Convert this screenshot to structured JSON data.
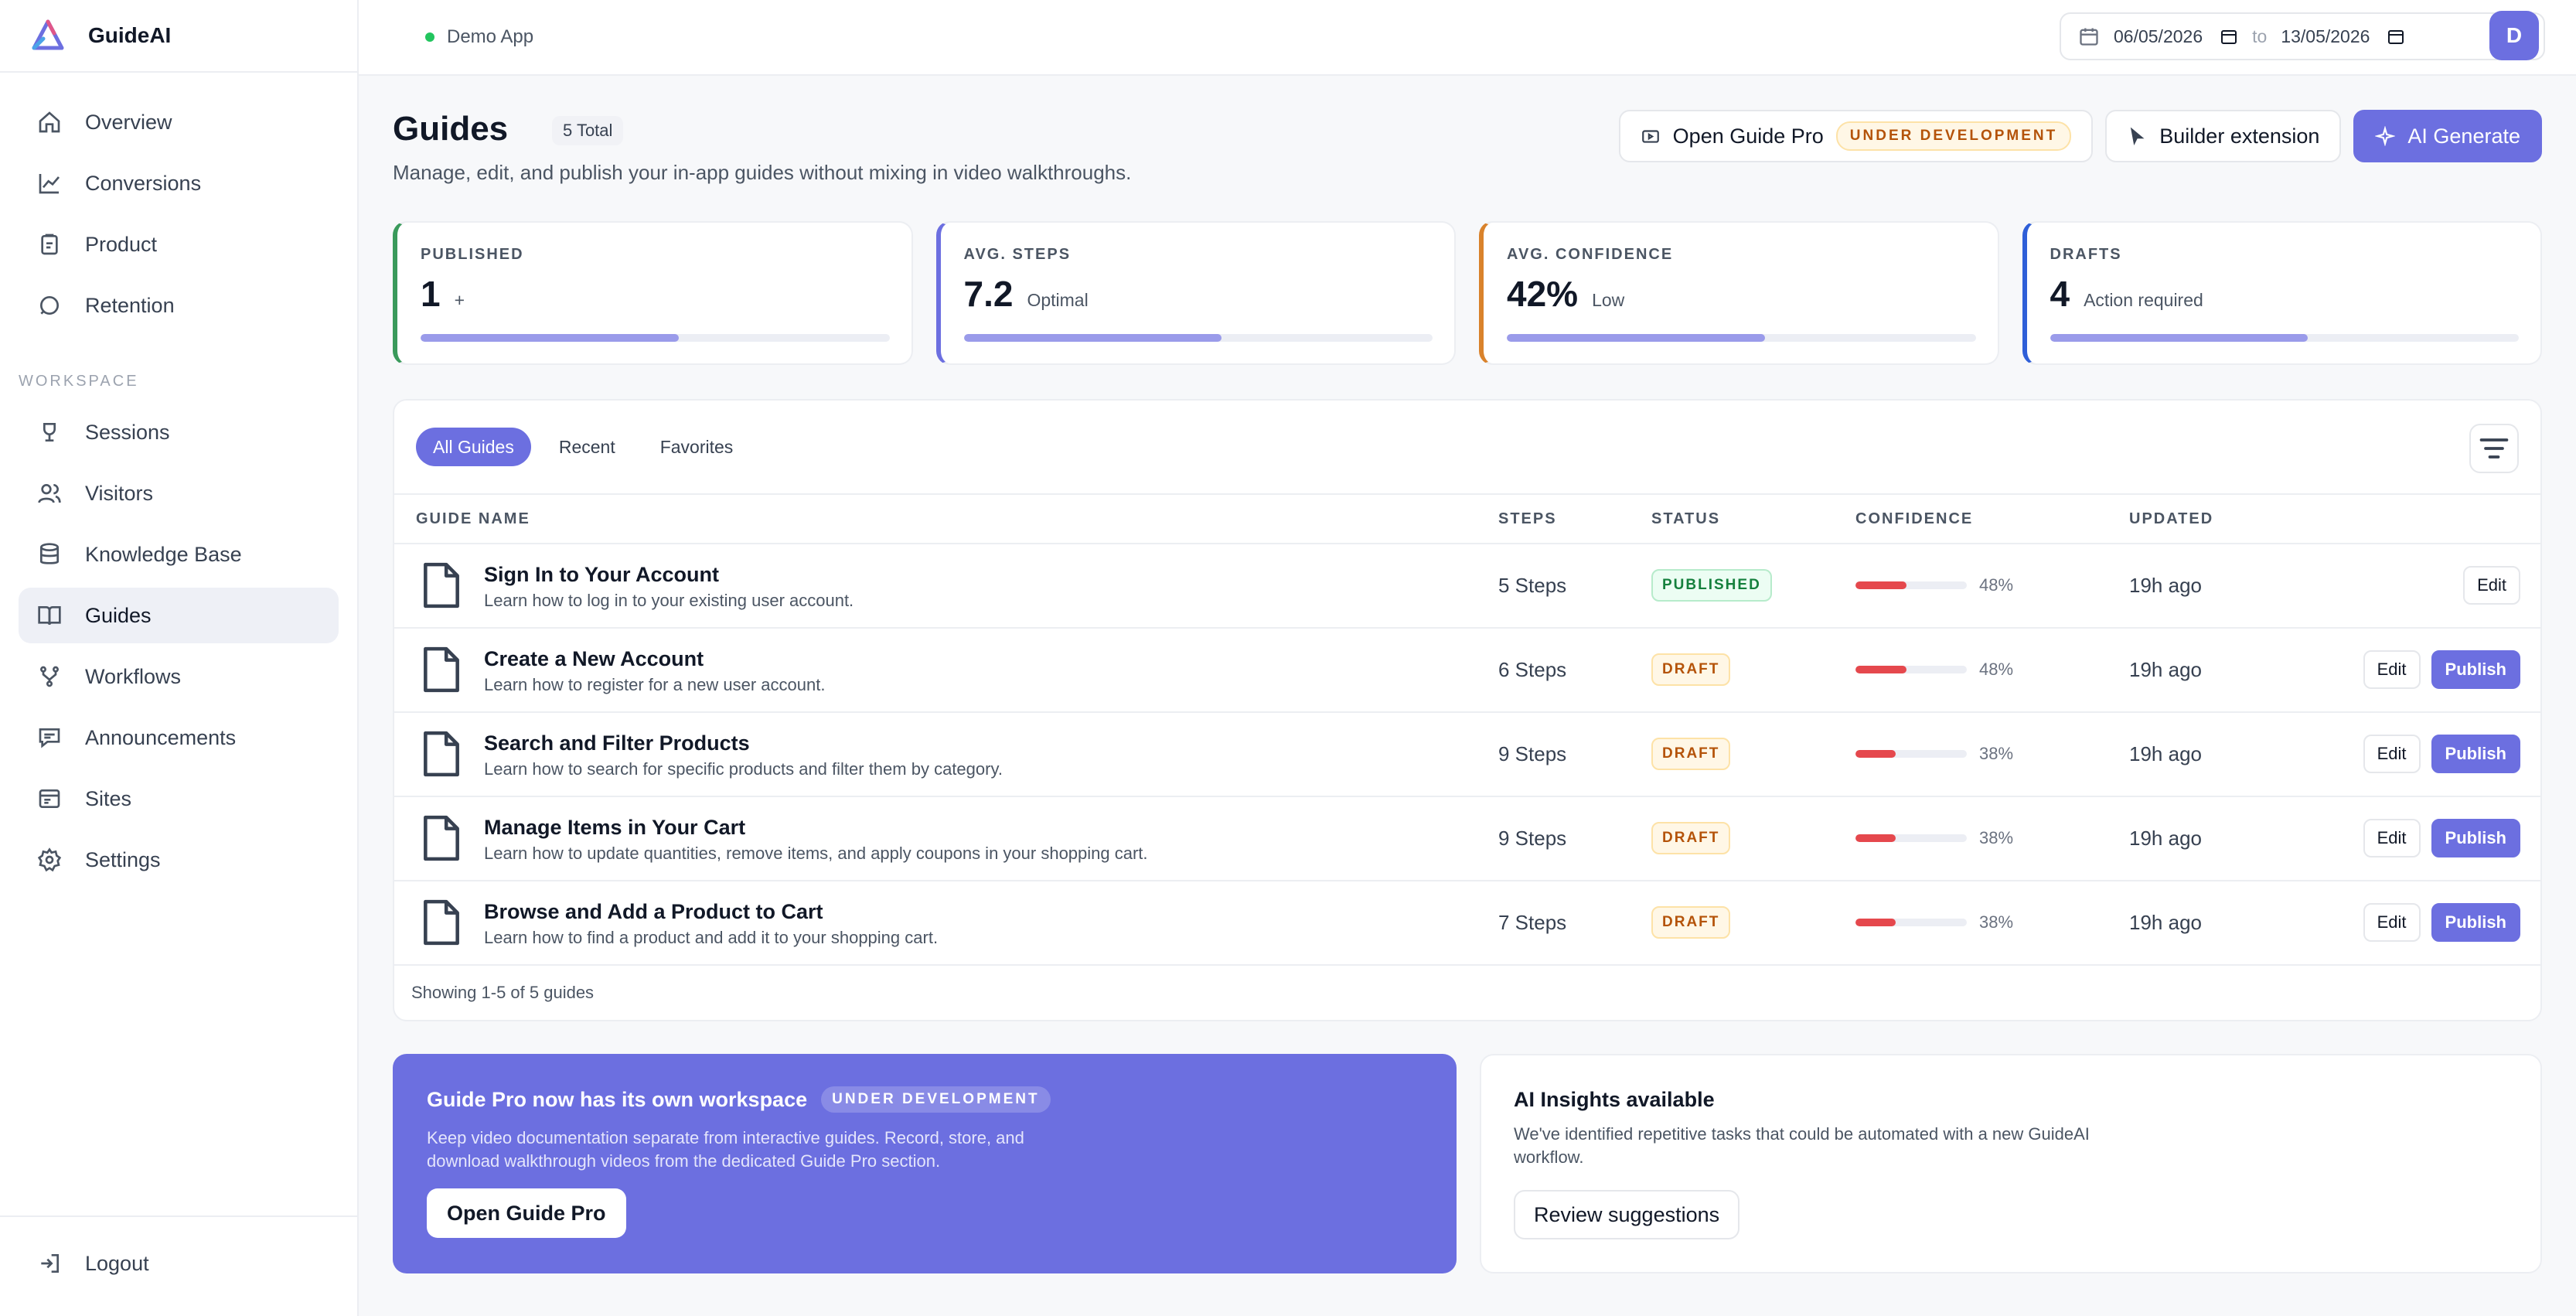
{
  "brand": {
    "name": "GuideAI"
  },
  "sidebar": {
    "primary": [
      {
        "label": "Overview",
        "icon": "home-icon"
      },
      {
        "label": "Conversions",
        "icon": "chart-icon"
      },
      {
        "label": "Product",
        "icon": "clipboard-icon"
      },
      {
        "label": "Retention",
        "icon": "circle-icon"
      }
    ],
    "section_label": "WORKSPACE",
    "workspace": [
      {
        "label": "Sessions",
        "icon": "trophy-icon"
      },
      {
        "label": "Visitors",
        "icon": "users-icon"
      },
      {
        "label": "Knowledge Base",
        "icon": "database-icon"
      },
      {
        "label": "Guides",
        "icon": "book-icon",
        "active": true
      },
      {
        "label": "Workflows",
        "icon": "workflow-icon"
      },
      {
        "label": "Announcements",
        "icon": "message-icon"
      },
      {
        "label": "Sites",
        "icon": "browser-icon"
      },
      {
        "label": "Settings",
        "icon": "gear-icon"
      }
    ],
    "logout": "Logout"
  },
  "topbar": {
    "env": "Demo App",
    "date_from": "06/05/2026",
    "date_sep": "to",
    "date_to": "13/05/2026",
    "avatar": "D"
  },
  "header": {
    "title": "Guides",
    "total": "5 Total",
    "subtitle": "Manage, edit, and publish your in-app guides without mixing in video walkthroughs.",
    "open_pro": "Open Guide Pro",
    "dev_badge": "UNDER DEVELOPMENT",
    "builder": "Builder extension",
    "ai_generate": "AI Generate"
  },
  "stats": [
    {
      "label": "PUBLISHED",
      "value": "1",
      "note": "+",
      "color": "#3a9a5b",
      "fill": 0.55
    },
    {
      "label": "AVG. STEPS",
      "value": "7.2",
      "note": "Optimal",
      "color": "#6c6fe0",
      "fill": 0.55
    },
    {
      "label": "AVG. CONFIDENCE",
      "value": "42%",
      "note": "Low",
      "color": "#d9822b",
      "fill": 0.55
    },
    {
      "label": "DRAFTS",
      "value": "4",
      "note": "Action required",
      "color": "#2f5fd8",
      "fill": 0.55
    }
  ],
  "tabs": [
    "All Guides",
    "Recent",
    "Favorites"
  ],
  "table": {
    "headers": {
      "name": "GUIDE NAME",
      "steps": "STEPS",
      "status": "STATUS",
      "confidence": "CONFIDENCE",
      "updated": "UPDATED"
    },
    "rows": [
      {
        "title": "Sign In to Your Account",
        "desc": "Learn how to log in to your existing user account.",
        "steps": "5 Steps",
        "status": "PUBLISHED",
        "confidence": "48%",
        "conf_value": 0.48,
        "updated": "19h ago",
        "edit": "Edit"
      },
      {
        "title": "Create a New Account",
        "desc": "Learn how to register for a new user account.",
        "steps": "6 Steps",
        "status": "DRAFT",
        "confidence": "48%",
        "conf_value": 0.48,
        "updated": "19h ago",
        "edit": "Edit",
        "publish": "Publish"
      },
      {
        "title": "Search and Filter Products",
        "desc": "Learn how to search for specific products and filter them by category.",
        "steps": "9 Steps",
        "status": "DRAFT",
        "confidence": "38%",
        "conf_value": 0.38,
        "updated": "19h ago",
        "edit": "Edit",
        "publish": "Publish"
      },
      {
        "title": "Manage Items in Your Cart",
        "desc": "Learn how to update quantities, remove items, and apply coupons in your shopping cart.",
        "steps": "9 Steps",
        "status": "DRAFT",
        "confidence": "38%",
        "conf_value": 0.38,
        "updated": "19h ago",
        "edit": "Edit",
        "publish": "Publish"
      },
      {
        "title": "Browse and Add a Product to Cart",
        "desc": "Learn how to find a product and add it to your shopping cart.",
        "steps": "7 Steps",
        "status": "DRAFT",
        "confidence": "38%",
        "conf_value": 0.38,
        "updated": "19h ago",
        "edit": "Edit",
        "publish": "Publish"
      }
    ],
    "footer": "Showing 1-5 of 5 guides"
  },
  "promo": {
    "title": "Guide Pro now has its own workspace",
    "badge": "UNDER DEVELOPMENT",
    "text": "Keep video documentation separate from interactive guides. Record, store, and download walkthrough videos from the dedicated Guide Pro section.",
    "button": "Open Guide Pro"
  },
  "insight": {
    "title": "AI Insights available",
    "text": "We've identified repetitive tasks that could be automated with a new GuideAI workflow.",
    "button": "Review suggestions"
  }
}
